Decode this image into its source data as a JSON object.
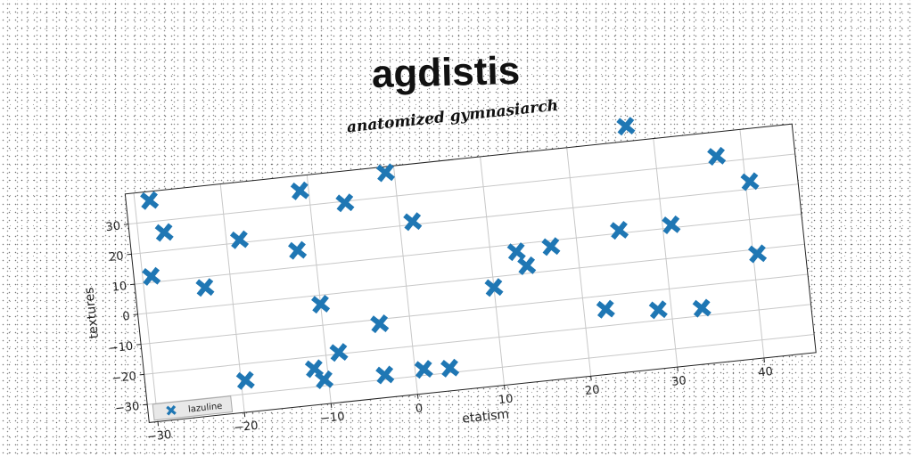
{
  "title": "agdistis",
  "chart_data": {
    "type": "scatter",
    "subtitle": "anatomized gymnasiarch",
    "xlabel": "etatism",
    "ylabel": "textures",
    "xlim": [
      -31,
      46
    ],
    "ylim": [
      -36,
      40
    ],
    "xticks": [
      -30,
      -20,
      -10,
      0,
      10,
      20,
      30,
      40
    ],
    "yticks": [
      -30,
      -20,
      -10,
      0,
      10,
      20,
      30
    ],
    "grid": true,
    "legend": "lower-left",
    "marker": "X",
    "color": "#1f77b4",
    "series": [
      {
        "name": "lazuline",
        "x": [
          -28.3,
          -27,
          -29,
          -23,
          -18.5,
          -19.5,
          -12,
          -11,
          -11.5,
          -10.5,
          -10,
          -8.5,
          -6,
          -3.5,
          -3.5,
          -1,
          1.5,
          1,
          4,
          10,
          13,
          14,
          17,
          22.5,
          25,
          27,
          28.5,
          31,
          33.5,
          37,
          40.5,
          40.5
        ],
        "y": [
          37,
          26,
          12,
          6.5,
          21,
          -25.5,
          15.5,
          35,
          -24,
          -28,
          -3,
          -19.5,
          29.5,
          -11.5,
          -28.5,
          38,
          21,
          -28,
          -28.5,
          -3.5,
          7.5,
          2.5,
          8,
          -14.5,
          11,
          45,
          -16.5,
          11,
          -17.5,
          32,
          22.5,
          -1.5
        ]
      }
    ]
  }
}
